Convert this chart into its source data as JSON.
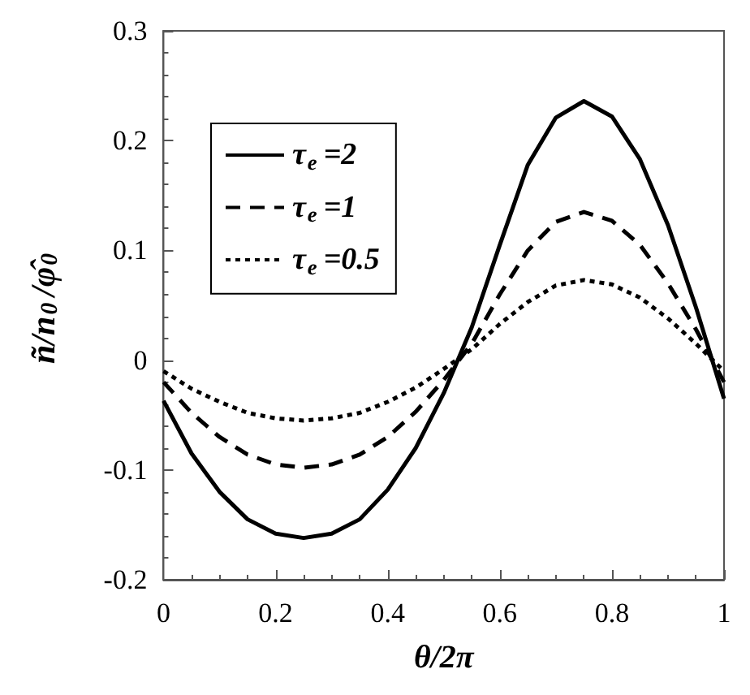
{
  "chart_data": {
    "type": "line",
    "xlabel": "θ/2π",
    "ylabel": "ñ/n$_{0}$/φ̂$_{0}$",
    "x": [
      0,
      0.05,
      0.1,
      0.15,
      0.2,
      0.25,
      0.3,
      0.35,
      0.4,
      0.45,
      0.5,
      0.55,
      0.6,
      0.65,
      0.7,
      0.75,
      0.8,
      0.85,
      0.9,
      0.95,
      1
    ],
    "series": [
      {
        "name": "τ$_{e}$=2",
        "color": "#000000",
        "line_style": "solid",
        "values": [
          -0.037,
          -0.085,
          -0.12,
          -0.145,
          -0.158,
          -0.162,
          -0.158,
          -0.145,
          -0.118,
          -0.08,
          -0.03,
          0.03,
          0.105,
          0.178,
          0.221,
          0.236,
          0.222,
          0.183,
          0.123,
          0.048,
          -0.035
        ]
      },
      {
        "name": "τ$_{e}$=1",
        "color": "#000000",
        "line_style": "dashed",
        "values": [
          -0.02,
          -0.048,
          -0.07,
          -0.086,
          -0.095,
          -0.098,
          -0.095,
          -0.086,
          -0.07,
          -0.047,
          -0.018,
          0.015,
          0.06,
          0.1,
          0.126,
          0.135,
          0.127,
          0.105,
          0.07,
          0.028,
          -0.02
        ]
      },
      {
        "name": "τ$_{e}$=0.5",
        "color": "#000000",
        "line_style": "dotted",
        "values": [
          -0.01,
          -0.026,
          -0.038,
          -0.048,
          -0.053,
          -0.055,
          -0.053,
          -0.048,
          -0.038,
          -0.025,
          -0.008,
          0.01,
          0.033,
          0.053,
          0.068,
          0.073,
          0.069,
          0.057,
          0.038,
          0.015,
          -0.01
        ]
      }
    ],
    "xlim": [
      0,
      1
    ],
    "xticks": [
      0,
      0.2,
      0.4,
      0.6,
      0.8,
      1
    ],
    "ylim": [
      -0.2,
      0.3
    ],
    "yticks": [
      -0.2,
      -0.1,
      0,
      0.1,
      0.2,
      0.3
    ],
    "legend": "top left"
  }
}
